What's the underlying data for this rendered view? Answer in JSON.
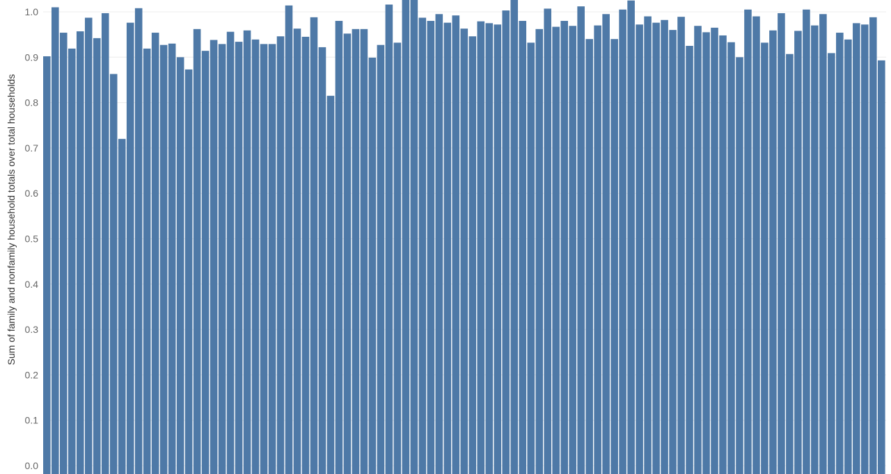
{
  "chart_data": {
    "type": "bar",
    "ylabel": "Sum of family and nonfamily household totals over total households",
    "ylim": [
      0.0,
      1.02
    ],
    "yticks": [
      "0.0",
      "0.1",
      "0.2",
      "0.3",
      "0.4",
      "0.5",
      "0.6",
      "0.7",
      "0.8",
      "0.9",
      "1.0"
    ],
    "grid": true,
    "bar_color": "#4e79a7",
    "values": [
      0.902,
      1.01,
      0.954,
      0.919,
      0.957,
      0.987,
      0.942,
      0.997,
      0.863,
      0.72,
      0.976,
      1.008,
      0.919,
      0.954,
      0.927,
      0.93,
      0.9,
      0.873,
      0.962,
      0.914,
      0.938,
      0.929,
      0.956,
      0.934,
      0.959,
      0.939,
      0.929,
      0.929,
      0.946,
      1.014,
      0.963,
      0.945,
      0.988,
      0.922,
      0.815,
      0.98,
      0.952,
      0.962,
      0.962,
      0.899,
      0.927,
      1.016,
      0.932,
      1.04,
      1.04,
      0.987,
      0.98,
      0.995,
      0.976,
      0.992,
      0.963,
      0.946,
      0.979,
      0.975,
      0.972,
      1.003,
      1.03,
      0.98,
      0.932,
      0.962,
      1.007,
      0.967,
      0.98,
      0.969,
      1.012,
      0.94,
      0.97,
      0.995,
      0.94,
      1.005,
      1.025,
      0.972,
      0.99,
      0.976,
      0.982,
      0.96,
      0.989,
      0.925,
      0.969,
      0.955,
      0.965,
      0.948,
      0.933,
      0.9,
      1.005,
      0.99,
      0.932,
      0.959,
      0.997,
      0.907,
      0.958,
      1.005,
      0.97,
      0.995,
      0.909,
      0.954,
      0.939,
      0.975,
      0.972,
      0.988,
      0.893
    ]
  }
}
